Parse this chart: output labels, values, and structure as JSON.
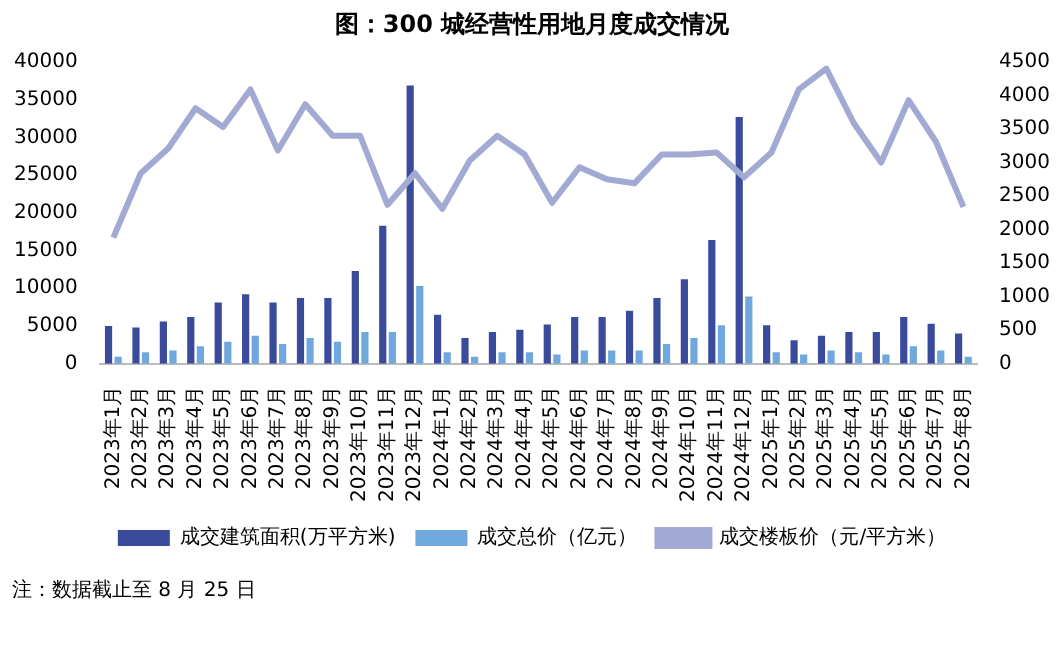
{
  "chart_data": {
    "type": "bar",
    "title": "图：300 城经营性用地月度成交情况",
    "categories": [
      "2023年1月",
      "2023年2月",
      "2023年3月",
      "2023年4月",
      "2023年5月",
      "2023年6月",
      "2023年7月",
      "2023年8月",
      "2023年9月",
      "2023年10月",
      "2023年11月",
      "2023年12月",
      "2024年1月",
      "2024年2月",
      "2024年3月",
      "2024年4月",
      "2024年5月",
      "2024年6月",
      "2024年7月",
      "2024年8月",
      "2024年9月",
      "2024年10月",
      "2024年11月",
      "2024年12月",
      "2025年1月",
      "2025年2月",
      "2025年3月",
      "2025年4月",
      "2025年5月",
      "2025年6月",
      "2025年7月",
      "2025年8月"
    ],
    "series": [
      {
        "name": "成交建筑面积(万平方米)",
        "color": "#3a4b9b",
        "values": [
          5000,
          4800,
          5600,
          6200,
          8100,
          9200,
          8100,
          8700,
          8700,
          12300,
          18300,
          36900,
          6500,
          3400,
          4200,
          4500,
          5200,
          6200,
          6200,
          7000,
          8700,
          11200,
          16400,
          32700,
          5100,
          3100,
          3700,
          4200,
          4200,
          6200,
          5300,
          4000
        ]
      },
      {
        "name": "成交总价（亿元）",
        "color": "#6fa8dc",
        "values": [
          900,
          1500,
          1750,
          2300,
          2900,
          3700,
          2600,
          3400,
          2900,
          4200,
          4200,
          10300,
          1500,
          900,
          1500,
          1500,
          1200,
          1750,
          1750,
          1750,
          2600,
          3400,
          5100,
          8900,
          1500,
          1200,
          1750,
          1500,
          1200,
          2300,
          1750,
          900
        ]
      },
      {
        "name": "成交楼板价（元/平方米）",
        "type": "line",
        "axis": "y2",
        "color": "#a2aad3",
        "values": [
          1880,
          2840,
          3210,
          3810,
          3530,
          4090,
          3180,
          3870,
          3400,
          3400,
          2370,
          2840,
          2310,
          3030,
          3400,
          3120,
          2400,
          2930,
          2750,
          2690,
          3120,
          3120,
          3150,
          2780,
          3150,
          4090,
          4400,
          3590,
          3000,
          3930,
          3310,
          2340
        ]
      }
    ],
    "ylim": [
      0,
      40000
    ],
    "yticks": [
      0,
      5000,
      10000,
      15000,
      20000,
      25000,
      30000,
      35000,
      40000
    ],
    "y2lim": [
      0,
      4500
    ],
    "y2ticks": [
      0,
      500,
      1000,
      1500,
      2000,
      2500,
      3000,
      3500,
      4000,
      4500
    ],
    "grid": false,
    "legend": "bottom",
    "marker": "none",
    "annotations": [
      "注：数据截止至 8 月 25 日"
    ]
  }
}
